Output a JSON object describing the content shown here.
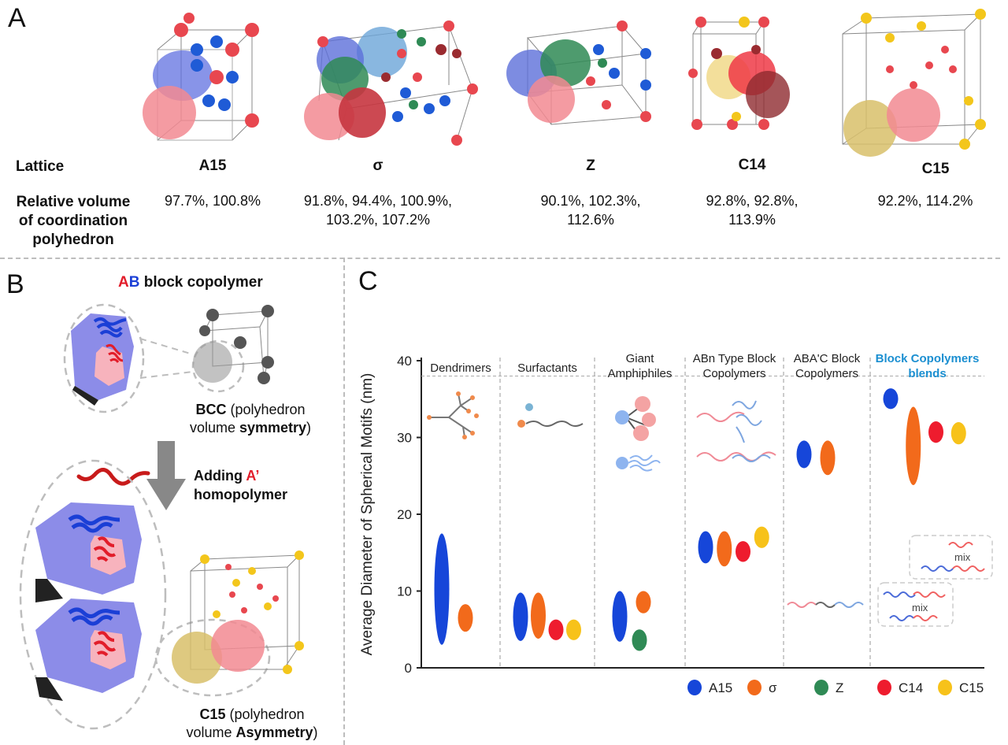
{
  "panel_a": {
    "letter": "A",
    "lattice_label": "Lattice",
    "volume_label_lines": [
      "Relative volume",
      "of coordination",
      "polyhedron"
    ],
    "lattices": [
      {
        "name": "A15",
        "lines": [
          "97.7%, 100.8%"
        ]
      },
      {
        "name": "σ",
        "lines": [
          "91.8%, 94.4%, 100.9%,",
          "103.2%, 107.2%"
        ]
      },
      {
        "name": "Z",
        "lines": [
          "90.1%, 102.3%,",
          "112.6%"
        ]
      },
      {
        "name": "C14",
        "lines": [
          "92.8%, 92.8%,",
          "113.9%"
        ]
      },
      {
        "name": "C15",
        "lines": [
          "92.2%, 114.2%"
        ]
      }
    ]
  },
  "panel_b": {
    "letter": "B",
    "title_a": "A",
    "title_b": "B",
    "title_rest": "block copolymer",
    "bcc_bold": "BCC",
    "bcc_line1_rest": "(polyhedron",
    "bcc_line2_plain": "volume",
    "bcc_line2_bold": "symmetry",
    "bcc_line2_close": ")",
    "adding_1": "Adding",
    "adding_accent": "A’",
    "adding_2": "homopolymer",
    "c15_bold": "C15",
    "c15_line1_rest": "(polyhedron",
    "c15_line2_plain": "volume",
    "c15_line2_bold": "Asymmetry",
    "c15_line2_close": ")"
  },
  "panel_c": {
    "letter": "C"
  },
  "colors": {
    "A15": "#1646d9",
    "sigma": "#f26a1b",
    "Z": "#2f8a55",
    "C14": "#ee1c2e",
    "C15": "#f7c21a",
    "blend_header": "#1b8fd1",
    "polyhedron_blue": "#8c8ce8",
    "polyhedron_pink": "#f7b3bd"
  },
  "chart_data": {
    "type": "scatter",
    "ylabel": "Average Diameter of Spherical Motifs (nm)",
    "ylim": [
      0,
      40
    ],
    "yticks": [
      0,
      10,
      20,
      30,
      40
    ],
    "categories": [
      {
        "label_lines": [
          "Dendrimers"
        ]
      },
      {
        "label_lines": [
          "Surfactants"
        ]
      },
      {
        "label_lines": [
          "Giant",
          "Amphiphiles"
        ]
      },
      {
        "label_lines": [
          "ABn Type Block",
          "Copolymers"
        ]
      },
      {
        "label_lines": [
          "ABA'C Block",
          "Copolymers"
        ]
      },
      {
        "label_lines": [
          "Block Copolymers",
          "blends"
        ],
        "highlight": true
      }
    ],
    "mixture_note": "mix",
    "legend": [
      {
        "key": "A15",
        "label": "A15"
      },
      {
        "key": "sigma",
        "label": "σ"
      },
      {
        "key": "Z",
        "label": "Z"
      },
      {
        "key": "C14",
        "label": "C14"
      },
      {
        "key": "C15",
        "label": "C15"
      }
    ],
    "series": [
      {
        "category": 0,
        "phase": "A15",
        "low": 3,
        "high": 17.5
      },
      {
        "category": 0,
        "phase": "sigma",
        "low": 4.7,
        "high": 8.3
      },
      {
        "category": 1,
        "phase": "A15",
        "low": 3.5,
        "high": 9.8
      },
      {
        "category": 1,
        "phase": "sigma",
        "low": 3.8,
        "high": 9.8
      },
      {
        "category": 1,
        "phase": "C14",
        "low": 3.6,
        "high": 6.3
      },
      {
        "category": 1,
        "phase": "C15",
        "low": 3.6,
        "high": 6.3
      },
      {
        "category": 2,
        "phase": "A15",
        "low": 3.4,
        "high": 10
      },
      {
        "category": 2,
        "phase": "sigma",
        "low": 7.1,
        "high": 10
      },
      {
        "category": 2,
        "phase": "Z",
        "low": 2.2,
        "high": 5
      },
      {
        "category": 3,
        "phase": "A15",
        "low": 13.6,
        "high": 17.8
      },
      {
        "category": 3,
        "phase": "sigma",
        "low": 13.2,
        "high": 17.8
      },
      {
        "category": 3,
        "phase": "C14",
        "low": 13.8,
        "high": 16.5
      },
      {
        "category": 3,
        "phase": "C15",
        "low": 15.6,
        "high": 18.4
      },
      {
        "category": 4,
        "phase": "A15",
        "low": 26,
        "high": 29.6
      },
      {
        "category": 4,
        "phase": "sigma",
        "low": 25.1,
        "high": 29.6
      },
      {
        "category": 5,
        "phase": "A15",
        "low": 33.7,
        "high": 36.4
      },
      {
        "category": 5,
        "phase": "sigma",
        "low": 23.8,
        "high": 34
      },
      {
        "category": 5,
        "phase": "C14",
        "low": 29.3,
        "high": 32.1
      },
      {
        "category": 5,
        "phase": "C15",
        "low": 29.1,
        "high": 32
      }
    ]
  }
}
